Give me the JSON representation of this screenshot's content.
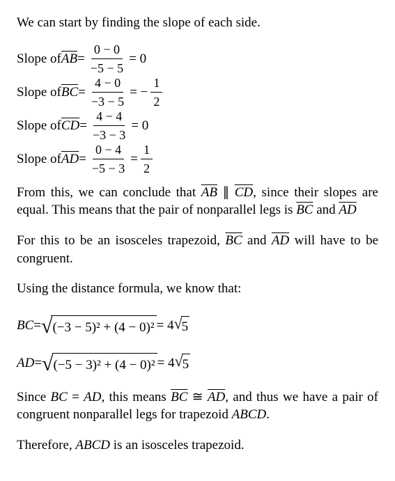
{
  "intro": "We can start by finding the slope of each side.",
  "slopes": {
    "ab": {
      "label_pre": "Slope of ",
      "seg": "AB",
      "num": "0 − 0",
      "den": "−5 − 5",
      "result": " = 0"
    },
    "bc": {
      "label_pre": "Slope of ",
      "seg": "BC",
      "num": "4 − 0",
      "den": "−3 − 5",
      "mid": " = −",
      "rnum": "1",
      "rden": "2"
    },
    "cd": {
      "label_pre": "Slope of ",
      "seg": "CD",
      "num": "4 − 4",
      "den": "−3 − 3",
      "result": " = 0"
    },
    "ad": {
      "label_pre": "Slope of ",
      "seg": "AD",
      "num": "0 − 4",
      "den": "−5 − 3",
      "mid": " = ",
      "rnum": "1",
      "rden": "2"
    }
  },
  "conclusion1": {
    "t1": "From this, we can conclude that ",
    "ab": "AB",
    "par": " ∥ ",
    "cd": "CD",
    "t2": ", since their slopes are equal. This means that the pair of nonparallel legs is ",
    "bc": "BC",
    "and": " and ",
    "ad": "AD"
  },
  "iso": {
    "t1": "For this to be an isosceles trapezoid, ",
    "bc": "BC",
    "and": " and ",
    "ad": "AD",
    "t2": " will have to be congruent."
  },
  "distintro": "Using the distance formula, we know that:",
  "dist": {
    "bc": {
      "lhs": "BC",
      "expr": "(−3 − 5)² + (4 − 0)²",
      "rhs_pre": " = 4",
      "rhs_rad": "5"
    },
    "ad": {
      "lhs": "AD",
      "expr": "(−5 − 3)² + (4 − 0)²",
      "rhs_pre": " = 4",
      "rhs_rad": "5"
    }
  },
  "conclusion2": {
    "t1": "Since ",
    "bc_i": "BC",
    "eq": " = ",
    "ad_i": "AD",
    "t2": ", this means ",
    "bc_o": "BC",
    "cong": " ≅ ",
    "ad_o": "AD",
    "t3": ", and thus we have a pair of congruent nonparallel legs for trapezoid ",
    "abcd": "ABCD",
    "period": "."
  },
  "final": {
    "t1": "Therefore, ",
    "abcd": "ABCD",
    "t2": " is an isosceles trapezoid."
  }
}
